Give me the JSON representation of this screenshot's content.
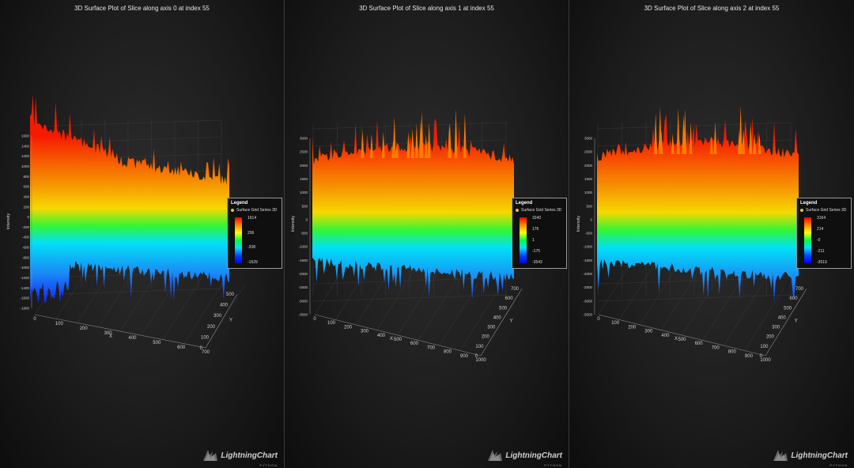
{
  "logo": {
    "text": "LightningChart",
    "sub": "PYTHON"
  },
  "chart_data": [
    {
      "type": "surface3d",
      "title": "3D Surface Plot of Slice along axis 0 at index 55",
      "xlabel": "X",
      "ylabel": "Intensity",
      "zlabel": "Y",
      "x_ticks": [
        "0",
        "100",
        "200",
        "300",
        "400",
        "500",
        "600",
        "700"
      ],
      "y_ticks": [
        "-1800",
        "-1600",
        "-1400",
        "-1200",
        "-1000",
        "-800",
        "-600",
        "-400",
        "-200",
        "0",
        "200",
        "400",
        "600",
        "800",
        "1000",
        "1200",
        "1400",
        "1600"
      ],
      "z_ticks": [
        "0",
        "100",
        "200",
        "300",
        "400",
        "500"
      ],
      "legend": {
        "title": "Legend",
        "series": "Surface Grid Series 3D",
        "ticks": [
          "1614",
          "206",
          "-208",
          "-1629"
        ]
      },
      "value_range": [
        -1629,
        1614
      ]
    },
    {
      "type": "surface3d",
      "title": "3D Surface Plot of Slice along axis 1 at index 55",
      "xlabel": "X",
      "ylabel": "Intensity",
      "zlabel": "Y",
      "x_ticks": [
        "0",
        "100",
        "200",
        "300",
        "400",
        "500",
        "600",
        "700",
        "800",
        "900",
        "1000"
      ],
      "y_ticks": [
        "-3500",
        "-3000",
        "-2500",
        "-2000",
        "-1500",
        "-1000",
        "-500",
        "0",
        "500",
        "1000",
        "1500",
        "2000",
        "2500",
        "3000"
      ],
      "z_ticks": [
        "0",
        "100",
        "200",
        "300",
        "400",
        "500",
        "600",
        "700"
      ],
      "legend": {
        "title": "Legend",
        "series": "Surface Grid Series 3D",
        "ticks": [
          "3240",
          "176",
          "1",
          "-175",
          "-3543"
        ]
      },
      "value_range": [
        -3543,
        3240
      ]
    },
    {
      "type": "surface3d",
      "title": "3D Surface Plot of Slice along axis 2 at index 55",
      "xlabel": "X",
      "ylabel": "Intensity",
      "zlabel": "Y",
      "x_ticks": [
        "0",
        "100",
        "200",
        "300",
        "400",
        "500",
        "600",
        "700",
        "800",
        "900",
        "1000"
      ],
      "y_ticks": [
        "-3500",
        "-3000",
        "-2500",
        "-2000",
        "-1500",
        "-1000",
        "-500",
        "0",
        "500",
        "1000",
        "1500",
        "2000",
        "2500",
        "3000"
      ],
      "z_ticks": [
        "0",
        "100",
        "200",
        "300",
        "400",
        "500",
        "600",
        "700"
      ],
      "legend": {
        "title": "Legend",
        "series": "Surface Grid Series 3D",
        "ticks": [
          "3164",
          "214",
          "-0",
          "-211",
          "-3519"
        ]
      },
      "value_range": [
        -3519,
        3164
      ]
    }
  ]
}
